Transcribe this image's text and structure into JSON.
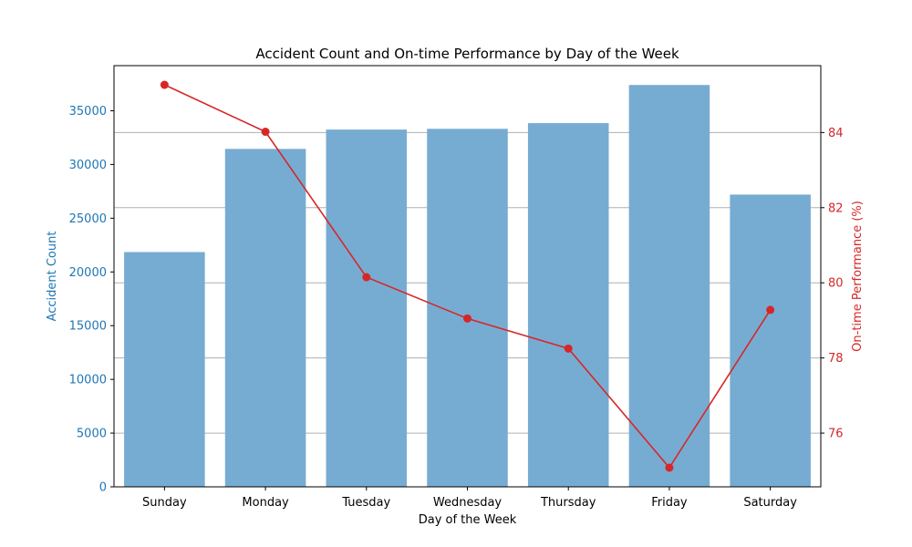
{
  "chart_data": {
    "type": "bar+line",
    "title": "Accident Count and On-time Performance by Day of the Week",
    "xlabel": "Day of the Week",
    "categories": [
      "Sunday",
      "Monday",
      "Tuesday",
      "Wednesday",
      "Thursday",
      "Friday",
      "Saturday"
    ],
    "left_axis": {
      "label": "Accident Count",
      "ylim": [
        0,
        39200
      ],
      "ticks": [
        0,
        5000,
        10000,
        15000,
        20000,
        25000,
        30000,
        35000
      ],
      "color": "#1f77b4"
    },
    "right_axis": {
      "label": "On-time Performance (%)",
      "ylim": [
        74.57,
        85.78
      ],
      "ticks": [
        76,
        78,
        80,
        82,
        84
      ],
      "color": "#d62728",
      "grid": true
    },
    "series": [
      {
        "kind": "bar",
        "axis": "left",
        "color": "#77acd2",
        "values": [
          21850,
          31450,
          33250,
          33320,
          33850,
          37400,
          27200
        ]
      },
      {
        "kind": "line",
        "axis": "right",
        "color": "#d62728",
        "values": [
          85.27,
          84.02,
          80.15,
          79.05,
          78.25,
          75.08,
          79.28
        ]
      }
    ]
  }
}
